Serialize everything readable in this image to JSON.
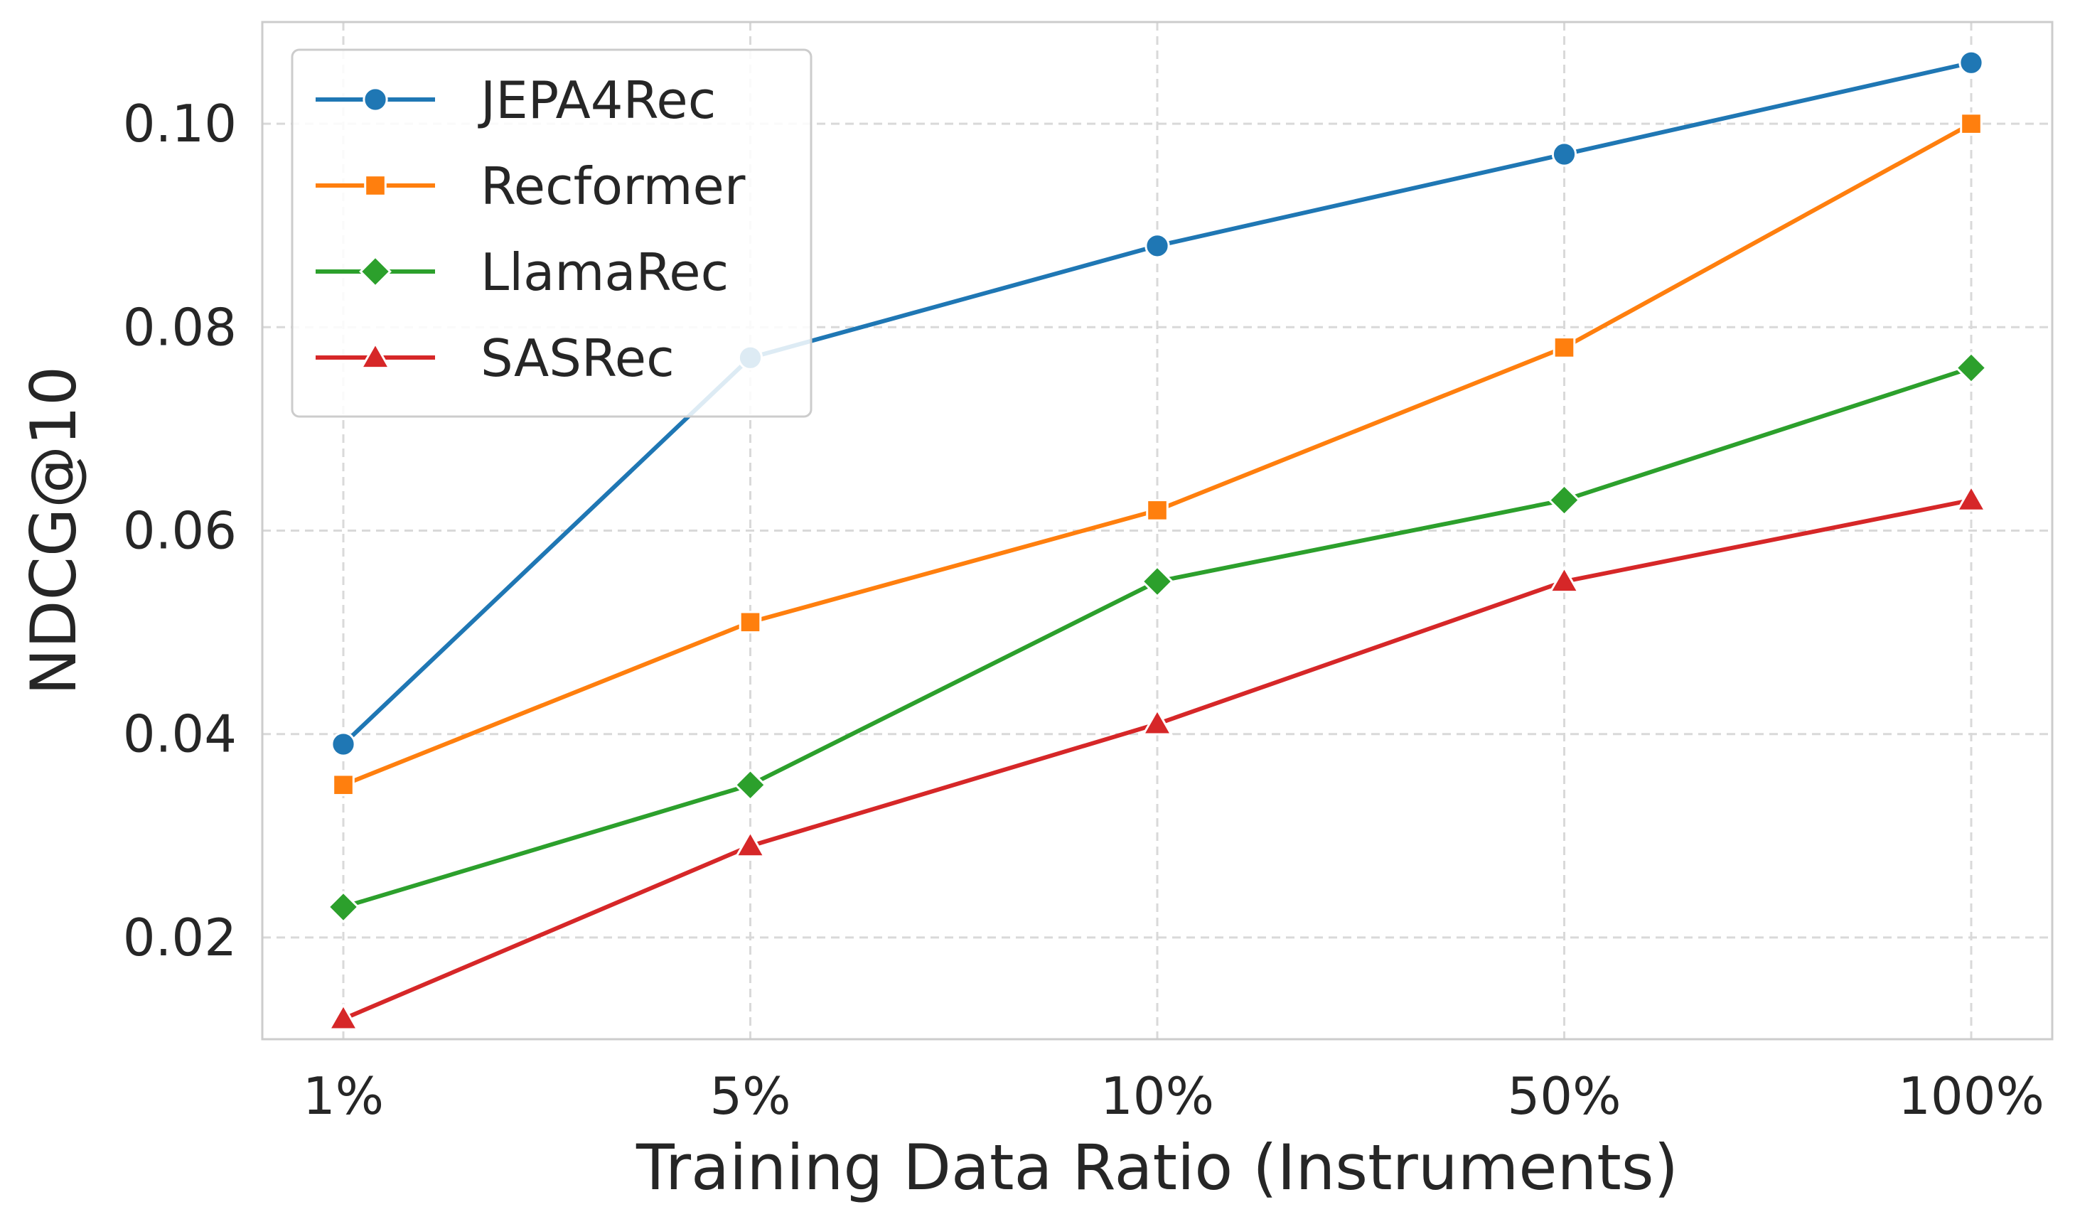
{
  "chart_data": {
    "type": "line",
    "title": "",
    "xlabel": "Training Data Ratio (Instruments)",
    "ylabel": "NDCG@10",
    "categories": [
      "1%",
      "5%",
      "10%",
      "50%",
      "100%"
    ],
    "ylim": [
      0.01,
      0.11
    ],
    "yticks": [
      0.02,
      0.04,
      0.06,
      0.08,
      0.1
    ],
    "ytick_labels": [
      "0.02",
      "0.04",
      "0.06",
      "0.08",
      "0.10"
    ],
    "grid": true,
    "legend_position": "top-left",
    "series": [
      {
        "name": "JEPA4Rec",
        "color": "#1f77b4",
        "marker": "circle",
        "values": [
          0.039,
          0.077,
          0.088,
          0.097,
          0.106
        ]
      },
      {
        "name": "Recformer",
        "color": "#ff7f0e",
        "marker": "square",
        "values": [
          0.035,
          0.051,
          0.062,
          0.078,
          0.1
        ]
      },
      {
        "name": "LlamaRec",
        "color": "#2ca02c",
        "marker": "diamond",
        "values": [
          0.023,
          0.035,
          0.055,
          0.063,
          0.076
        ]
      },
      {
        "name": "SASRec",
        "color": "#d62728",
        "marker": "triangle",
        "values": [
          0.012,
          0.029,
          0.041,
          0.055,
          0.063
        ]
      }
    ]
  }
}
